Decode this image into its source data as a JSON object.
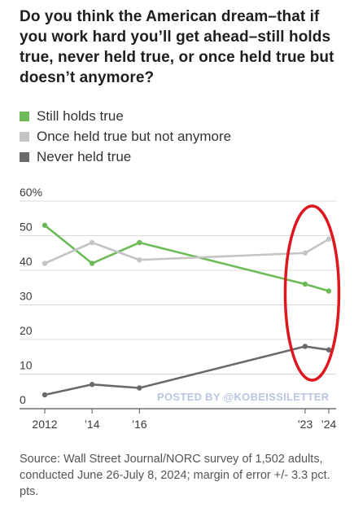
{
  "title": "Do you think the American dream–that if you work hard you’ll get ahead–still holds true, never held true, or once held true but doesn’t anymore?",
  "source": "Source: Wall Street Journal/NORC survey of 1,502 adults, conducted June 26-July 8, 2024; margin of error +/- 3.3 pct. pts.",
  "watermark": "POSTED BY @KOBEISSILETTER",
  "colors": {
    "still_holds": "#6cba58",
    "once_held": "#c4c4c4",
    "never_held": "#6a6a6a",
    "highlight_circle": "#e0161e",
    "grid": "#d9d9d9",
    "axis": "#555555"
  },
  "chart_data": {
    "type": "line",
    "title": "Do you think the American dream–that if you work hard you’ll get ahead–still holds true, never held true, or once held true but doesn’t anymore?",
    "x": [
      2012,
      2014,
      2016,
      2023,
      2024
    ],
    "x_tick_labels": [
      "2012",
      "’14",
      "’16",
      "’23",
      "’24"
    ],
    "y_tick_labels": [
      "0",
      "10",
      "20",
      "30",
      "40",
      "50",
      "60%"
    ],
    "ylim": [
      0,
      60
    ],
    "grid": true,
    "legend_position": "top-left",
    "series": [
      {
        "name": "Still holds true",
        "values": [
          53,
          42,
          48,
          36,
          34
        ],
        "color": "#6cba58"
      },
      {
        "name": "Once held true but not anymore",
        "values": [
          42,
          48,
          43,
          45,
          49
        ],
        "color": "#c4c4c4"
      },
      {
        "name": "Never held true",
        "values": [
          4,
          7,
          6,
          18,
          17
        ],
        "color": "#6a6a6a"
      }
    ],
    "annotation": "red circle highlighting 2023–2024 values"
  }
}
